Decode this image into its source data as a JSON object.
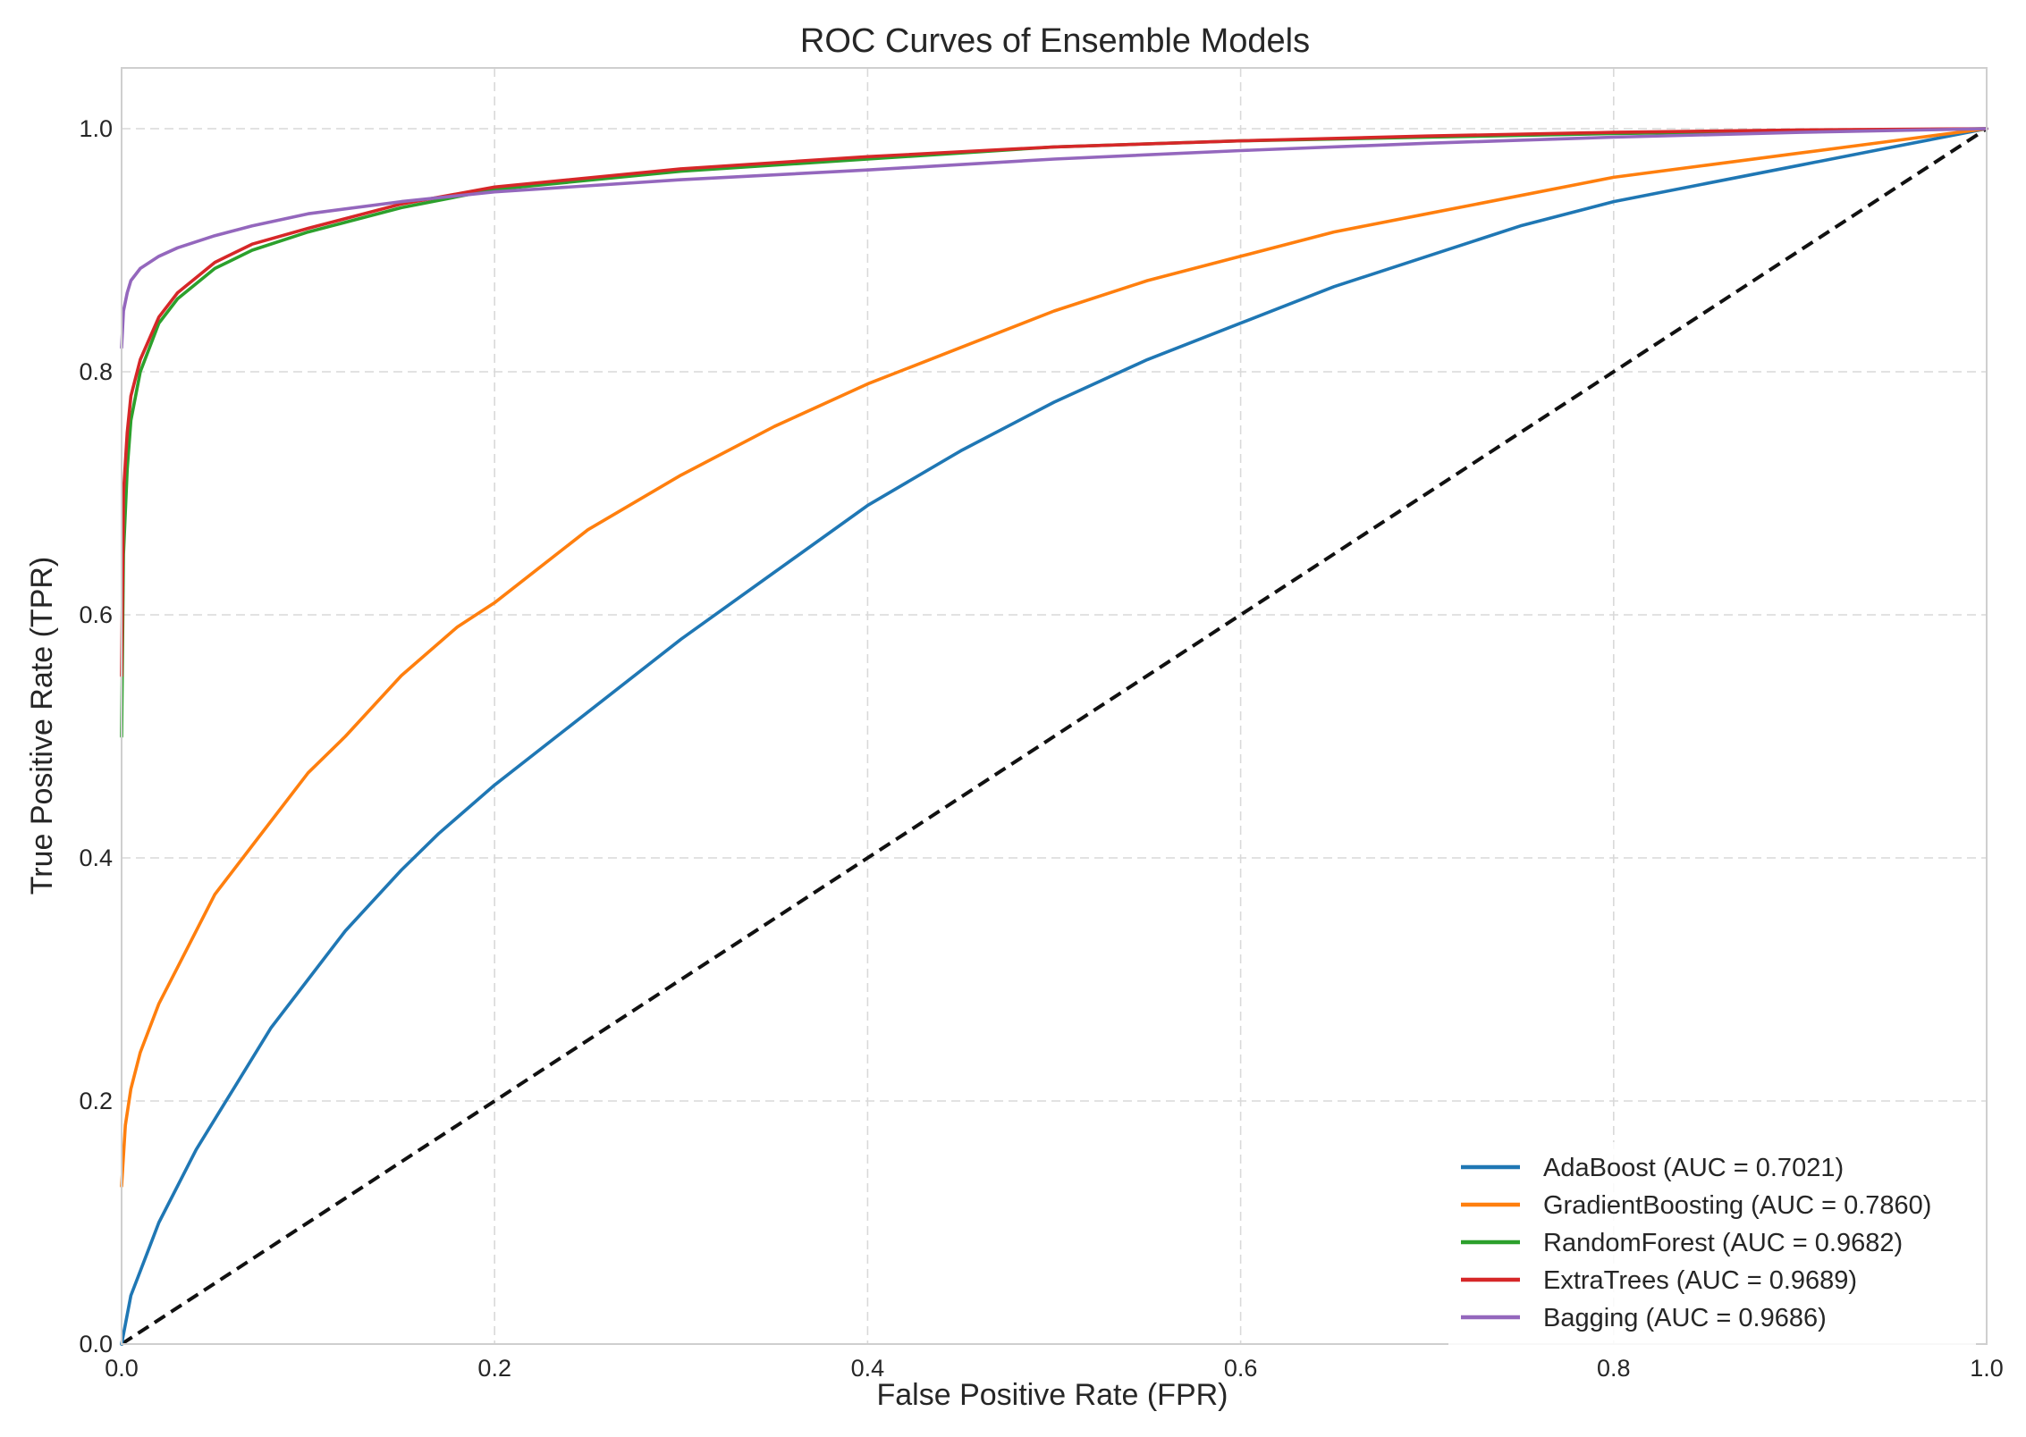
{
  "chart_data": {
    "type": "line",
    "title": "ROC Curves of Ensemble Models",
    "xlabel": "False Positive Rate (FPR)",
    "ylabel": "True Positive Rate (TPR)",
    "xlim": [
      0.0,
      1.0
    ],
    "ylim": [
      0.0,
      1.05
    ],
    "xticks": [
      "0.0",
      "0.2",
      "0.4",
      "0.6",
      "0.8",
      "1.0"
    ],
    "yticks": [
      "0.0",
      "0.2",
      "0.4",
      "0.6",
      "0.8",
      "1.0"
    ],
    "grid": true,
    "legend_position": "bottom-right",
    "series": [
      {
        "name": "AdaBoost (AUC = 0.7021)",
        "color": "#1f77b4",
        "x": [
          0,
          0.005,
          0.01,
          0.02,
          0.04,
          0.06,
          0.08,
          0.1,
          0.12,
          0.15,
          0.17,
          0.2,
          0.25,
          0.3,
          0.35,
          0.4,
          0.45,
          0.5,
          0.55,
          0.6,
          0.65,
          0.7,
          0.75,
          0.8,
          0.85,
          0.9,
          0.95,
          1.0
        ],
        "y": [
          0,
          0.04,
          0.06,
          0.1,
          0.16,
          0.21,
          0.26,
          0.3,
          0.34,
          0.39,
          0.42,
          0.46,
          0.52,
          0.58,
          0.635,
          0.69,
          0.735,
          0.775,
          0.81,
          0.84,
          0.87,
          0.895,
          0.92,
          0.94,
          0.955,
          0.97,
          0.985,
          1.0
        ]
      },
      {
        "name": "GradientBoosting (AUC = 0.7860)",
        "color": "#ff7f0e",
        "x": [
          0,
          0.002,
          0.005,
          0.01,
          0.02,
          0.03,
          0.05,
          0.07,
          0.1,
          0.12,
          0.15,
          0.18,
          0.2,
          0.25,
          0.3,
          0.35,
          0.4,
          0.45,
          0.5,
          0.55,
          0.6,
          0.65,
          0.7,
          0.75,
          0.8,
          0.85,
          0.9,
          0.95,
          1.0
        ],
        "y": [
          0.13,
          0.18,
          0.21,
          0.24,
          0.28,
          0.31,
          0.37,
          0.41,
          0.47,
          0.5,
          0.55,
          0.59,
          0.61,
          0.67,
          0.715,
          0.755,
          0.79,
          0.82,
          0.85,
          0.875,
          0.895,
          0.915,
          0.93,
          0.945,
          0.96,
          0.97,
          0.98,
          0.99,
          1.0
        ]
      },
      {
        "name": "RandomForest (AUC = 0.9682)",
        "color": "#2ca02c",
        "x": [
          0,
          0.001,
          0.003,
          0.005,
          0.01,
          0.02,
          0.03,
          0.05,
          0.07,
          0.1,
          0.15,
          0.2,
          0.3,
          0.4,
          0.5,
          0.6,
          0.7,
          0.8,
          0.9,
          1.0
        ],
        "y": [
          0.5,
          0.65,
          0.72,
          0.76,
          0.8,
          0.84,
          0.86,
          0.885,
          0.9,
          0.915,
          0.935,
          0.95,
          0.965,
          0.975,
          0.985,
          0.99,
          0.993,
          0.996,
          0.998,
          1.0
        ]
      },
      {
        "name": "ExtraTrees (AUC = 0.9689)",
        "color": "#d62728",
        "x": [
          0,
          0.001,
          0.003,
          0.005,
          0.01,
          0.02,
          0.03,
          0.05,
          0.07,
          0.1,
          0.15,
          0.2,
          0.3,
          0.4,
          0.5,
          0.6,
          0.7,
          0.8,
          0.9,
          1.0
        ],
        "y": [
          0.55,
          0.7,
          0.75,
          0.78,
          0.81,
          0.845,
          0.865,
          0.89,
          0.905,
          0.918,
          0.938,
          0.952,
          0.967,
          0.977,
          0.985,
          0.99,
          0.994,
          0.997,
          0.999,
          1.0
        ]
      },
      {
        "name": "Bagging (AUC = 0.9686)",
        "color": "#9467bd",
        "x": [
          0,
          0.001,
          0.003,
          0.005,
          0.01,
          0.02,
          0.03,
          0.05,
          0.07,
          0.1,
          0.15,
          0.2,
          0.3,
          0.4,
          0.5,
          0.6,
          0.7,
          0.8,
          0.9,
          1.0
        ],
        "y": [
          0.82,
          0.85,
          0.865,
          0.875,
          0.885,
          0.895,
          0.902,
          0.912,
          0.92,
          0.93,
          0.94,
          0.948,
          0.958,
          0.966,
          0.975,
          0.982,
          0.988,
          0.993,
          0.997,
          1.0
        ]
      }
    ],
    "reference_line": {
      "x": [
        0.0,
        1.0
      ],
      "y": [
        0.0,
        1.0
      ],
      "color": "#111111",
      "style": "dashed"
    }
  }
}
